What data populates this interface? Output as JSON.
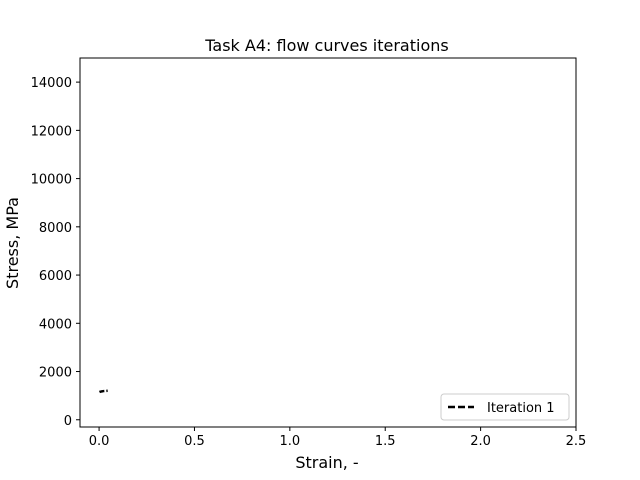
{
  "chart_data": {
    "type": "line",
    "title": "Task A4: flow curves iterations",
    "xlabel": "Strain, -",
    "ylabel": "Stress, MPa",
    "xlim": [
      -0.1,
      2.5
    ],
    "ylim": [
      -300,
      15000
    ],
    "xticks": [
      0.0,
      0.5,
      1.0,
      1.5,
      2.0,
      2.5
    ],
    "xtick_labels": [
      "0.0",
      "0.5",
      "1.0",
      "1.5",
      "2.0",
      "2.5"
    ],
    "yticks": [
      0,
      2000,
      4000,
      6000,
      8000,
      10000,
      12000,
      14000
    ],
    "ytick_labels": [
      "0",
      "2000",
      "4000",
      "6000",
      "8000",
      "10000",
      "12000",
      "14000"
    ],
    "grid": false,
    "legend_position": "lower-right",
    "series": [
      {
        "name": "Iteration 1",
        "color": "#000000",
        "linestyle": "dashed",
        "x": [
          0.002,
          0.005,
          0.01,
          0.015,
          0.02,
          0.025,
          0.03,
          0.035,
          0.04,
          0.045
        ],
        "y": [
          1150,
          1160,
          1170,
          1178,
          1185,
          1190,
          1194,
          1197,
          1200,
          1202
        ]
      }
    ]
  }
}
